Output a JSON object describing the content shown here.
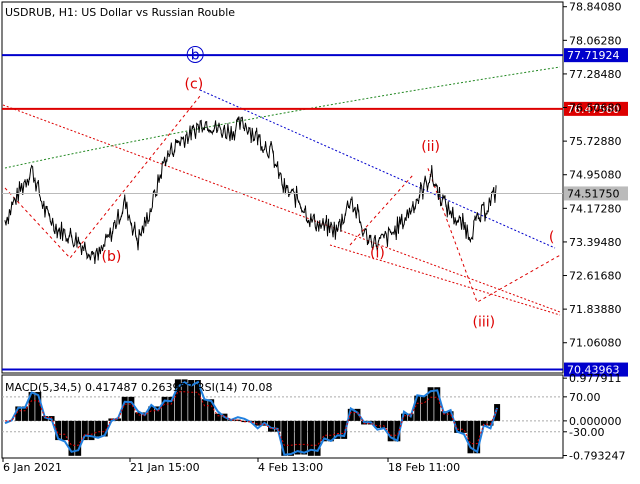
{
  "chart_data": {
    "type": "line",
    "title": "USDRUB, H1:  US Dollar vs Russian Rouble",
    "price_axis": {
      "range": [
        70.36,
        78.95
      ],
      "ticks": [
        "78.84080",
        "78.06280",
        "77.28480",
        "76.50680",
        "75.72880",
        "74.95080",
        "74.17280",
        "73.39480",
        "72.61680",
        "71.83880",
        "71.06080"
      ]
    },
    "time_axis": {
      "labels": [
        "6 Jan 2021",
        "21 Jan 15:00",
        "4 Feb 13:00",
        "18 Feb 11:00"
      ]
    },
    "current_price": "74.51750",
    "horizontal_levels": [
      {
        "value": 77.71924,
        "label": "77.71924",
        "color": "#0000cc"
      },
      {
        "value": 76.4756,
        "label": "76.47560",
        "color": "#dd0000"
      },
      {
        "value": 70.43963,
        "label": "70.43963",
        "color": "#0000cc"
      }
    ],
    "price_series": [
      {
        "x": 0,
        "y": 73.9
      },
      {
        "x": 1,
        "y": 74.5
      },
      {
        "x": 2,
        "y": 75.1
      },
      {
        "x": 3,
        "y": 74.1
      },
      {
        "x": 4,
        "y": 73.7
      },
      {
        "x": 5,
        "y": 73.5
      },
      {
        "x": 6,
        "y": 73.3
      },
      {
        "x": 7,
        "y": 73.05
      },
      {
        "x": 8,
        "y": 73.6
      },
      {
        "x": 9,
        "y": 74.3
      },
      {
        "x": 10,
        "y": 73.4
      },
      {
        "x": 11,
        "y": 74.2
      },
      {
        "x": 12,
        "y": 75.3
      },
      {
        "x": 13,
        "y": 75.7
      },
      {
        "x": 14,
        "y": 75.9
      },
      {
        "x": 15,
        "y": 76.2
      },
      {
        "x": 16,
        "y": 76.0
      },
      {
        "x": 17,
        "y": 75.95
      },
      {
        "x": 18,
        "y": 76.15
      },
      {
        "x": 19,
        "y": 75.8
      },
      {
        "x": 20,
        "y": 75.5
      },
      {
        "x": 21,
        "y": 74.6
      },
      {
        "x": 22,
        "y": 74.4
      },
      {
        "x": 23,
        "y": 73.9
      },
      {
        "x": 24,
        "y": 73.75
      },
      {
        "x": 25,
        "y": 73.65
      },
      {
        "x": 26,
        "y": 74.4
      },
      {
        "x": 27,
        "y": 73.6
      },
      {
        "x": 28,
        "y": 73.35
      },
      {
        "x": 29,
        "y": 73.55
      },
      {
        "x": 30,
        "y": 73.9
      },
      {
        "x": 31,
        "y": 74.4
      },
      {
        "x": 32,
        "y": 74.95
      },
      {
        "x": 33,
        "y": 74.3
      },
      {
        "x": 34,
        "y": 73.9
      },
      {
        "x": 35,
        "y": 73.6
      },
      {
        "x": 36,
        "y": 74.1
      },
      {
        "x": 37,
        "y": 74.6
      }
    ],
    "wave_labels": [
      {
        "text": "(b)",
        "x": 8,
        "y": 72.95,
        "color": "#dd0000"
      },
      {
        "text": "(c)",
        "x": 14.2,
        "y": 76.95,
        "color": "#dd0000"
      },
      {
        "text": "b",
        "x": 14.3,
        "y": 77.62,
        "color": "#0000cc",
        "circled": true
      },
      {
        "text": "(i)",
        "x": 28,
        "y": 73.03,
        "color": "#dd0000"
      },
      {
        "text": "(ii)",
        "x": 32,
        "y": 75.5,
        "color": "#dd0000"
      },
      {
        "text": "(iii)",
        "x": 36,
        "y": 71.44,
        "color": "#dd0000"
      },
      {
        "text": "(",
        "x": 41.1,
        "y": 73.4,
        "color": "#dd0000"
      }
    ],
    "projection_path": [
      {
        "x": 31.8,
        "y": 75.1
      },
      {
        "x": 35.5,
        "y": 72.0
      },
      {
        "x": 41.8,
        "y": 73.1
      }
    ],
    "indicator": {
      "label": "MACD(5,34,5) 0.417487 0.263957 RSI(14) 70.08",
      "range": [
        -0.85,
        1.05
      ],
      "ticks": [
        "0.977911",
        "70.00",
        "0.000000",
        "-30.00",
        "-0.793247"
      ]
    }
  }
}
